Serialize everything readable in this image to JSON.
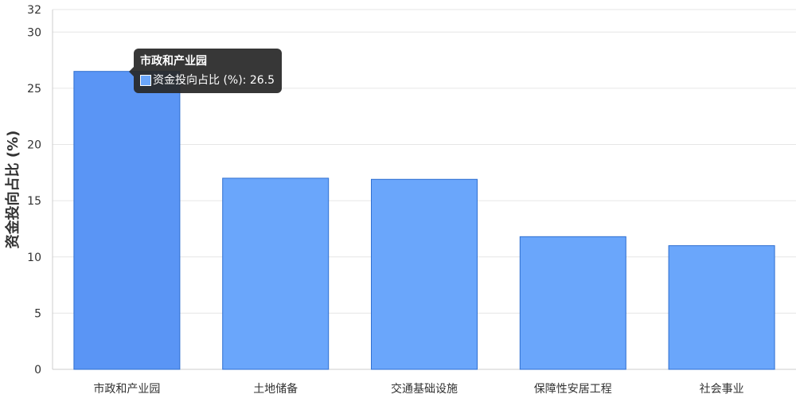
{
  "chart_data": {
    "type": "bar",
    "categories": [
      "市政和产业园",
      "土地储备",
      "交通基础设施",
      "保障性安居工程",
      "社会事业"
    ],
    "series": [
      {
        "name": "资金投向占比 (%)",
        "values": [
          26.5,
          17.0,
          16.9,
          11.8,
          11.0
        ]
      }
    ],
    "xlabel": "",
    "ylabel": "资金投向占比 (%)",
    "ylim": [
      0,
      32
    ],
    "yticks": [
      0,
      5,
      10,
      15,
      20,
      25,
      30,
      32
    ],
    "grid": true,
    "colors": {
      "bar": "#6aa6fb",
      "bar_border": "#2f6fd0"
    }
  },
  "tooltip": {
    "title": "市政和产业园",
    "series_label": "资金投向占比 (%): 26.5"
  }
}
